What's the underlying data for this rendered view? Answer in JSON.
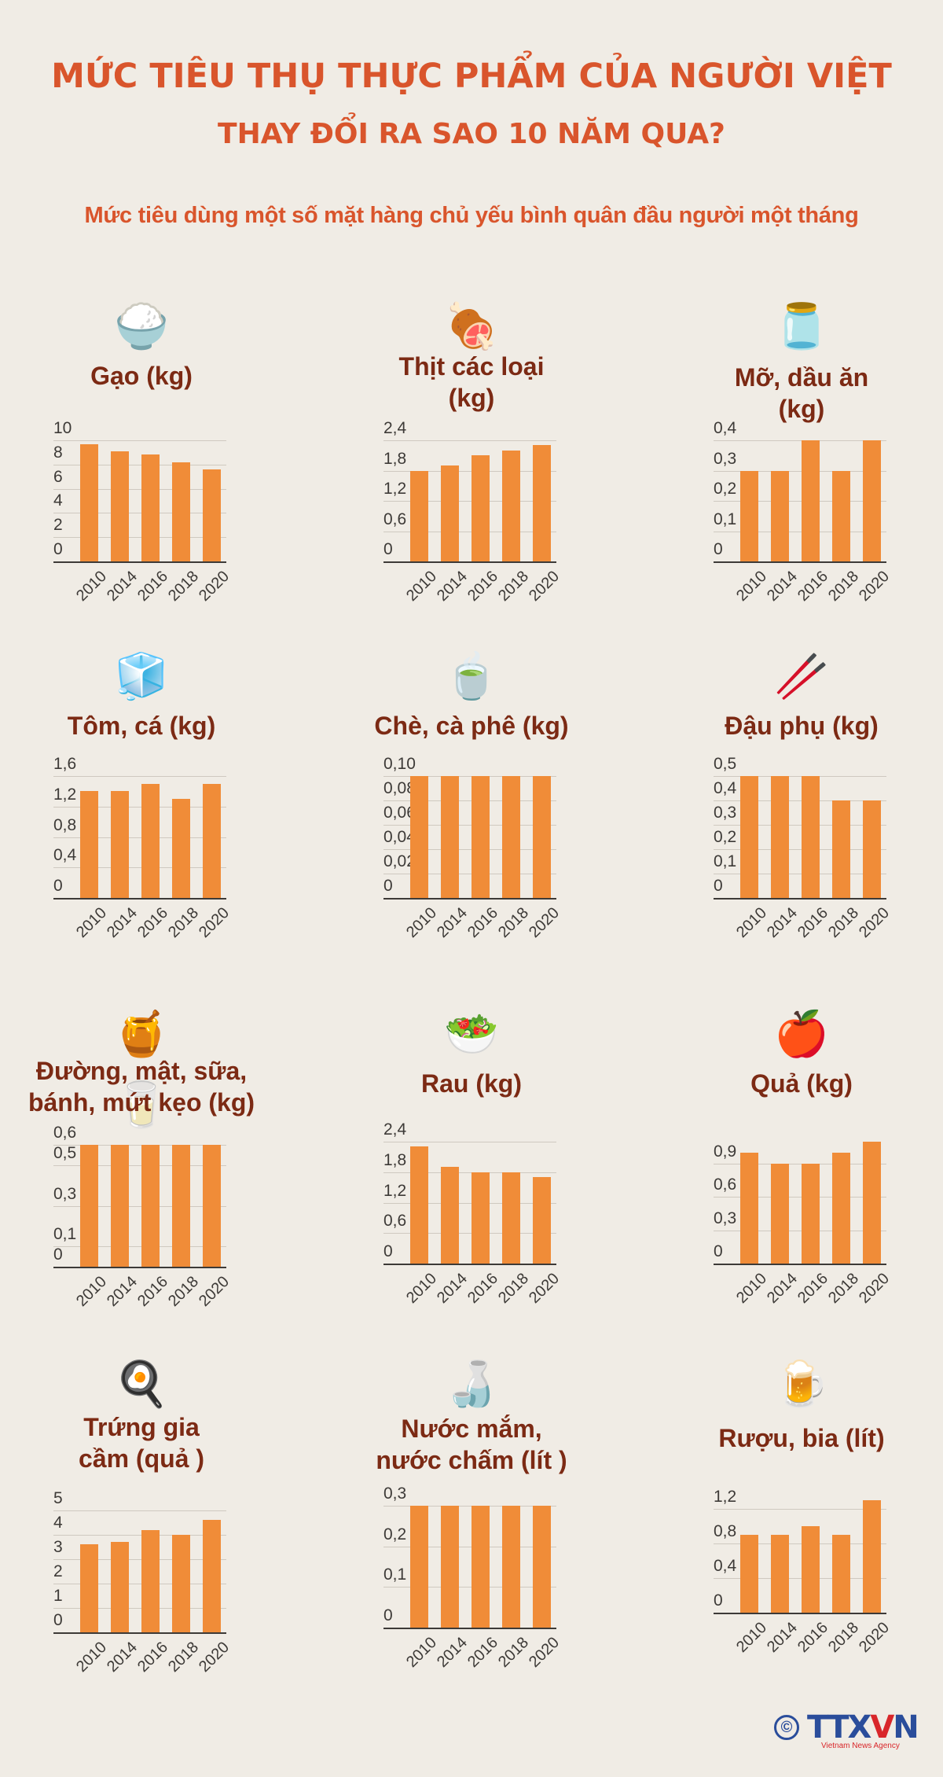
{
  "header": {
    "title_line1": "MỨC TIÊU THỤ THỰC PHẨM CỦA NGƯỜI VIỆT",
    "title_line2": "THAY ĐỔI RA SAO 10 NĂM QUA?",
    "subtitle": "Mức tiêu dùng một số mặt hàng chủ yếu bình quân đầu người một tháng"
  },
  "colors": {
    "title": "#d9552c",
    "panel_title": "#7c2a14",
    "bar": "#f08c38",
    "background": "#f0ece5",
    "axis": "#3d3a37",
    "grid": "#cfc9c0"
  },
  "footer": {
    "copyright_symbol": "©",
    "brand": "TTXVN",
    "brand_tagline": "Vietnam News Agency"
  },
  "chart_data": [
    {
      "type": "bar",
      "title": "Gạo (kg)",
      "icon": "rice-bowl-icon",
      "categories": [
        "2010",
        "2014",
        "2016",
        "2018",
        "2020"
      ],
      "values": [
        9.7,
        9.1,
        8.8,
        8.2,
        7.6
      ],
      "yticks": [
        "10",
        "8",
        "6",
        "4",
        "2",
        "0"
      ],
      "ylim": [
        0,
        10
      ],
      "grid": true
    },
    {
      "type": "bar",
      "title": "Thịt các loại (kg)",
      "icon": "meat-plate-icon",
      "categories": [
        "2010",
        "2014",
        "2016",
        "2018",
        "2020"
      ],
      "values": [
        1.8,
        1.9,
        2.1,
        2.2,
        2.3
      ],
      "yticks": [
        "2,4",
        "1,8",
        "1,2",
        "0,6",
        "0"
      ],
      "ylim": [
        0,
        2.4
      ],
      "grid": true
    },
    {
      "type": "bar",
      "title": "Mỡ, dầu ăn (kg)",
      "icon": "oil-bottle-icon",
      "categories": [
        "2010",
        "2014",
        "2016",
        "2018",
        "2020"
      ],
      "values": [
        0.3,
        0.3,
        0.4,
        0.3,
        0.4
      ],
      "yticks": [
        "0,4",
        "0,3",
        "0,2",
        "0,1",
        "0"
      ],
      "ylim": [
        0,
        0.4
      ],
      "grid": true
    },
    {
      "type": "bar",
      "title": "Tôm, cá (kg)",
      "icon": "seafood-box-icon",
      "categories": [
        "2010",
        "2014",
        "2016",
        "2018",
        "2020"
      ],
      "values": [
        1.4,
        1.4,
        1.5,
        1.3,
        1.5
      ],
      "yticks": [
        "1,6",
        "1,2",
        "0,8",
        "0,4",
        "0"
      ],
      "ylim": [
        0,
        1.6
      ],
      "grid": true
    },
    {
      "type": "bar",
      "title": "Chè, cà phê (kg)",
      "icon": "tea-coffee-icon",
      "categories": [
        "2010",
        "2014",
        "2016",
        "2018",
        "2020"
      ],
      "values": [
        0.1,
        0.1,
        0.1,
        0.1,
        0.1
      ],
      "yticks": [
        "0,10",
        "0,08",
        "0,06",
        "0,04",
        "0,02",
        "0"
      ],
      "ylim": [
        0,
        0.1
      ],
      "grid": true
    },
    {
      "type": "bar",
      "title": "Đậu phụ (kg)",
      "icon": "tofu-chopsticks-icon",
      "categories": [
        "2010",
        "2014",
        "2016",
        "2018",
        "2020"
      ],
      "values": [
        0.5,
        0.5,
        0.5,
        0.4,
        0.4
      ],
      "yticks": [
        "0,5",
        "0,4",
        "0,3",
        "0,2",
        "0,1",
        "0"
      ],
      "ylim": [
        0,
        0.5
      ],
      "grid": true
    },
    {
      "type": "bar",
      "title": "Đường, mật, sữa, bánh, mứt kẹo (kg)",
      "icon": "honey-milk-icon",
      "categories": [
        "2010",
        "2014",
        "2016",
        "2018",
        "2020"
      ],
      "values": [
        0.6,
        0.6,
        0.6,
        0.6,
        0.6
      ],
      "yticks": [
        "0,6",
        "0,5",
        "0,3",
        "0,1",
        "0"
      ],
      "ylim": [
        0,
        0.6
      ],
      "grid": true
    },
    {
      "type": "bar",
      "title": "Rau (kg)",
      "icon": "salad-bowl-icon",
      "categories": [
        "2010",
        "2014",
        "2016",
        "2018",
        "2020"
      ],
      "values": [
        2.3,
        1.9,
        1.8,
        1.8,
        1.7
      ],
      "yticks": [
        "2,4",
        "1,8",
        "1,2",
        "0,6",
        "0"
      ],
      "ylim": [
        0,
        2.4
      ],
      "grid": true
    },
    {
      "type": "bar",
      "title": "Quả (kg)",
      "icon": "fruit-icon",
      "categories": [
        "2010",
        "2014",
        "2016",
        "2018",
        "2020"
      ],
      "values": [
        1.0,
        0.9,
        0.9,
        1.0,
        1.1
      ],
      "yticks": [
        "0,9",
        "0,6",
        "0,3",
        "0"
      ],
      "ylim": [
        0,
        1.1
      ],
      "grid": true
    },
    {
      "type": "bar",
      "title": "Trứng gia cầm (quả )",
      "icon": "fried-egg-icon",
      "categories": [
        "2010",
        "2014",
        "2016",
        "2018",
        "2020"
      ],
      "values": [
        3.6,
        3.7,
        4.2,
        4.0,
        4.6
      ],
      "yticks": [
        "5",
        "4",
        "3",
        "2",
        "1",
        "0"
      ],
      "ylim": [
        0,
        5
      ],
      "grid": true
    },
    {
      "type": "bar",
      "title": "Nước mắm, nước chấm (lít )",
      "icon": "fish-sauce-bottle-icon",
      "categories": [
        "2010",
        "2014",
        "2016",
        "2018",
        "2020"
      ],
      "values": [
        0.3,
        0.3,
        0.3,
        0.3,
        0.3
      ],
      "yticks": [
        "0,3",
        "0,2",
        "0,1",
        "0"
      ],
      "ylim": [
        0,
        0.3
      ],
      "grid": true
    },
    {
      "type": "bar",
      "title": "Rượu, bia (lít)",
      "icon": "beer-mug-icon",
      "categories": [
        "2010",
        "2014",
        "2016",
        "2018",
        "2020"
      ],
      "values": [
        0.9,
        0.9,
        1.0,
        0.9,
        1.3
      ],
      "yticks": [
        "1,2",
        "0,8",
        "0,4",
        "0"
      ],
      "ylim": [
        0,
        1.3
      ],
      "grid": true
    }
  ],
  "panels": [
    {
      "title_lines": [
        "Gạo (kg)"
      ]
    },
    {
      "title_lines": [
        "Thịt các loại",
        "(kg)"
      ]
    },
    {
      "title_lines": [
        "Mỡ, dầu ăn",
        "(kg)"
      ]
    },
    {
      "title_lines": [
        "Tôm, cá (kg)"
      ]
    },
    {
      "title_lines": [
        "Chè, cà phê (kg)"
      ]
    },
    {
      "title_lines": [
        "Đậu phụ (kg)"
      ]
    },
    {
      "title_lines": [
        "Đường, mật, sữa,",
        "bánh, mứt kẹo (kg)"
      ]
    },
    {
      "title_lines": [
        "Rau (kg)"
      ]
    },
    {
      "title_lines": [
        "Quả (kg)"
      ]
    },
    {
      "title_lines": [
        "Trứng gia",
        "cầm (quả )"
      ]
    },
    {
      "title_lines": [
        "Nước mắm,",
        "nước chấm (lít )"
      ]
    },
    {
      "title_lines": [
        "Rượu, bia (lít)"
      ]
    }
  ]
}
